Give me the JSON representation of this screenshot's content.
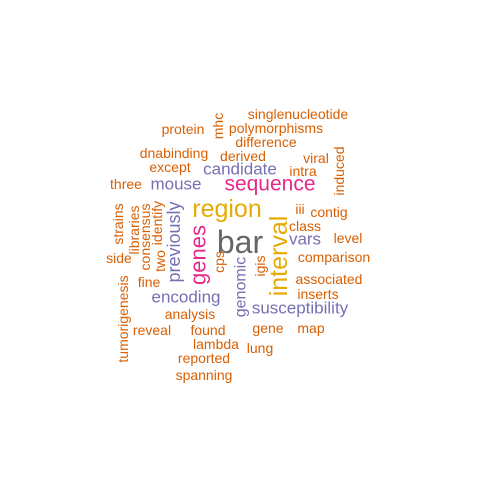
{
  "colors": {
    "orange": "#d95f02",
    "purple": "#7570b3",
    "magenta": "#e7298a",
    "gold": "#e6ab02",
    "gray": "#666666"
  },
  "words": [
    {
      "id": "bar",
      "text": "bar",
      "color": "gray"
    },
    {
      "id": "sequence",
      "text": "sequence",
      "color": "magenta"
    },
    {
      "id": "region",
      "text": "region",
      "color": "gold"
    },
    {
      "id": "interval",
      "text": "interval",
      "color": "gold"
    },
    {
      "id": "genes",
      "text": "genes",
      "color": "magenta"
    },
    {
      "id": "candidate",
      "text": "candidate",
      "color": "purple"
    },
    {
      "id": "mouse",
      "text": "mouse",
      "color": "purple"
    },
    {
      "id": "previously",
      "text": "previously",
      "color": "purple"
    },
    {
      "id": "encoding",
      "text": "encoding",
      "color": "purple"
    },
    {
      "id": "susceptibility",
      "text": "susceptibility",
      "color": "purple"
    },
    {
      "id": "genomic",
      "text": "genomic",
      "color": "purple"
    },
    {
      "id": "vars",
      "text": "vars",
      "color": "purple"
    },
    {
      "id": "singlenucleotide",
      "text": "singlenucleotide",
      "color": "orange"
    },
    {
      "id": "polymorphisms",
      "text": "polymorphisms",
      "color": "orange"
    },
    {
      "id": "protein",
      "text": "protein",
      "color": "orange"
    },
    {
      "id": "mhc",
      "text": "mhc",
      "color": "orange"
    },
    {
      "id": "difference",
      "text": "difference",
      "color": "orange"
    },
    {
      "id": "dnabinding",
      "text": "dnabinding",
      "color": "orange"
    },
    {
      "id": "derived",
      "text": "derived",
      "color": "orange"
    },
    {
      "id": "viral",
      "text": "viral",
      "color": "orange"
    },
    {
      "id": "except",
      "text": "except",
      "color": "orange"
    },
    {
      "id": "intra",
      "text": "intra",
      "color": "orange"
    },
    {
      "id": "induced",
      "text": "induced",
      "color": "orange"
    },
    {
      "id": "three",
      "text": "three",
      "color": "orange"
    },
    {
      "id": "iii",
      "text": "iii",
      "color": "orange"
    },
    {
      "id": "contig",
      "text": "contig",
      "color": "orange"
    },
    {
      "id": "strains",
      "text": "strains",
      "color": "orange"
    },
    {
      "id": "libraries",
      "text": "libraries",
      "color": "orange"
    },
    {
      "id": "consensus",
      "text": "consensus",
      "color": "orange"
    },
    {
      "id": "identify",
      "text": "identify",
      "color": "orange"
    },
    {
      "id": "class",
      "text": "class",
      "color": "orange"
    },
    {
      "id": "level",
      "text": "level",
      "color": "orange"
    },
    {
      "id": "two",
      "text": "two",
      "color": "orange"
    },
    {
      "id": "cps",
      "text": "cps",
      "color": "orange"
    },
    {
      "id": "igis",
      "text": "igis",
      "color": "orange"
    },
    {
      "id": "side",
      "text": "side",
      "color": "orange"
    },
    {
      "id": "comparison",
      "text": "comparison",
      "color": "orange"
    },
    {
      "id": "fine",
      "text": "fine",
      "color": "orange"
    },
    {
      "id": "associated",
      "text": "associated",
      "color": "orange"
    },
    {
      "id": "tumorigenesis",
      "text": "tumorigenesis",
      "color": "orange"
    },
    {
      "id": "inserts",
      "text": "inserts",
      "color": "orange"
    },
    {
      "id": "analysis",
      "text": "analysis",
      "color": "orange"
    },
    {
      "id": "reveal",
      "text": "reveal",
      "color": "orange"
    },
    {
      "id": "found",
      "text": "found",
      "color": "orange"
    },
    {
      "id": "gene",
      "text": "gene",
      "color": "orange"
    },
    {
      "id": "map",
      "text": "map",
      "color": "orange"
    },
    {
      "id": "lambda",
      "text": "lambda",
      "color": "orange"
    },
    {
      "id": "lung",
      "text": "lung",
      "color": "orange"
    },
    {
      "id": "reported",
      "text": "reported",
      "color": "orange"
    },
    {
      "id": "spanning",
      "text": "spanning",
      "color": "orange"
    }
  ]
}
